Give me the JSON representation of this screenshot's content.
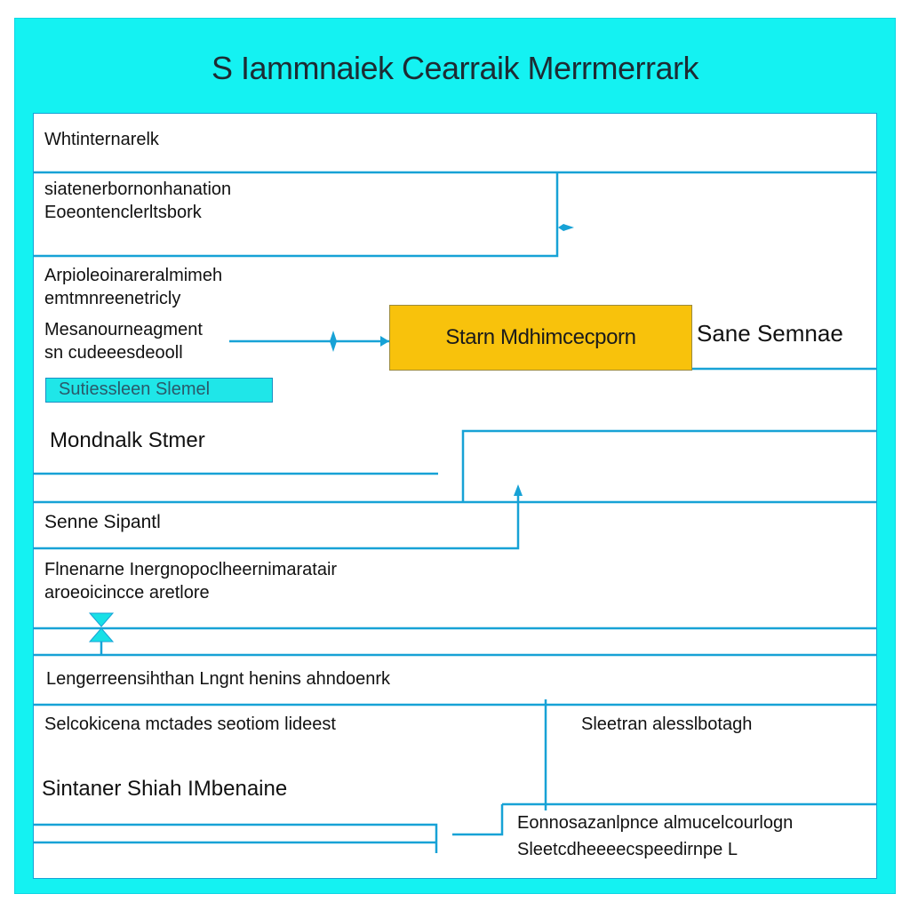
{
  "title": "S Iammnaiek Cearraik  Merrmerrark",
  "header_row": "Whtinternarelk",
  "block_1": [
    "siatenerbornonhanation",
    "Eoeontenclerltsbork"
  ],
  "block_2": [
    "Arpioleoinareralmimeh",
    "emtmnreenetricly"
  ],
  "block_3": [
    "Mesanourneagment",
    "sn cudeeesdeooll"
  ],
  "center_box": "Starn Mdhimcecporn",
  "side_label": "Sane Semnae",
  "cyan_tag": "Sutiessleen  Slemel",
  "heading_1": "Mondnalk Stmer",
  "row_senne": "Senne Sipantl",
  "block_4": [
    "Flnenarne Inergnopoclheernimaratair",
    "aroeoicincce aretlore"
  ],
  "row_long": "Lengerreensihthan Lngnt henins ahndoenrk",
  "row_select": "Selcokicena mctades seotiom lideest",
  "right_note": "Sleetran alesslbotagh",
  "heading_2": "Sintaner Shiah IMbenaine",
  "block_5": [
    "Eonnosazanlpnce almucelcourlogn",
    "Sleetcdheeeecspeedirnpe L"
  ],
  "colors": {
    "frame": "#14f2f2",
    "line": "#17a2d6",
    "accent_box": "#f8c20c"
  }
}
